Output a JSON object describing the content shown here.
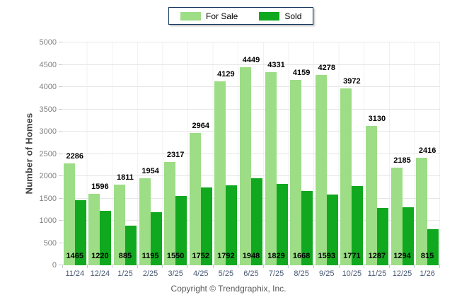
{
  "chart_data": {
    "type": "bar",
    "title": "",
    "xlabel": "",
    "ylabel": "Number of Homes",
    "ylim": [
      0,
      5000
    ],
    "ytick_step": 500,
    "grid": true,
    "legend_position": "top-center",
    "categories": [
      "11/24",
      "12/24",
      "1/25",
      "2/25",
      "3/25",
      "4/25",
      "5/25",
      "6/25",
      "7/25",
      "8/25",
      "9/25",
      "10/25",
      "11/25",
      "12/25",
      "1/26"
    ],
    "series": [
      {
        "name": "For Sale",
        "color": "#9CDD86",
        "label_position": "above-bar",
        "values": [
          2286,
          1596,
          1811,
          1954,
          2317,
          2964,
          4129,
          4449,
          4331,
          4159,
          4278,
          3972,
          3130,
          2185,
          2416
        ]
      },
      {
        "name": "Sold",
        "color": "#10A81E",
        "label_position": "inside-bottom",
        "values": [
          1465,
          1220,
          885,
          1195,
          1550,
          1752,
          1792,
          1948,
          1829,
          1668,
          1593,
          1771,
          1287,
          1294,
          815
        ]
      }
    ]
  },
  "footer": {
    "copyright": "Copyright © Trendgraphix, Inc."
  },
  "colors": {
    "for_sale": "#9CDD86",
    "sold": "#10A81E",
    "legend_border": "#17375E",
    "gridline": "#E6E6E6",
    "axis_text": "#808080",
    "x_axis_text": "#4A5A74",
    "value_label": "#000000"
  }
}
